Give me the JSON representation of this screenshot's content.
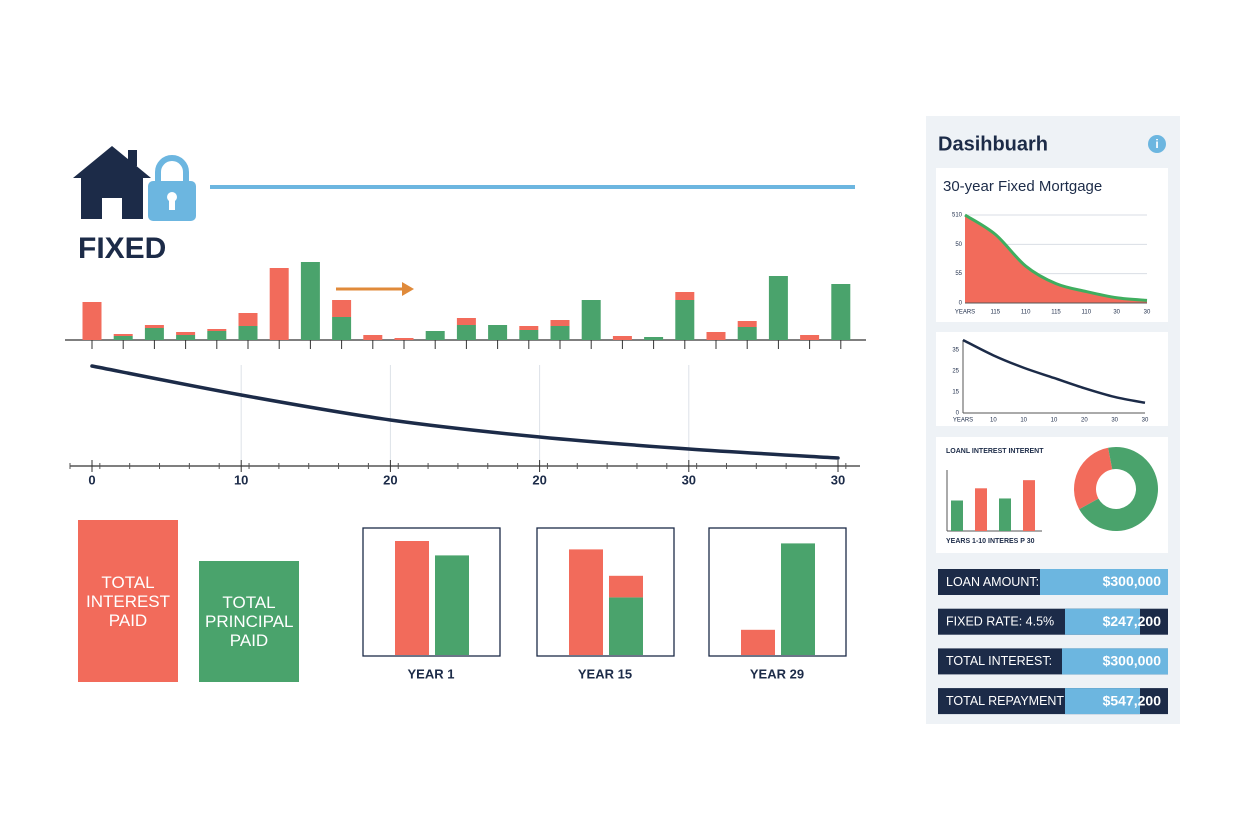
{
  "header": {
    "title": "FIXED"
  },
  "chart_data": [
    {
      "type": "stacked-bar",
      "categories": [
        null,
        null,
        null,
        null,
        null,
        null,
        null,
        null,
        null,
        null,
        null,
        null,
        null,
        null,
        null,
        null,
        null,
        null,
        null,
        null,
        null,
        null,
        null,
        null,
        null
      ],
      "ylim": [
        0,
        80
      ],
      "series": [
        {
          "color": "#4aa36c",
          "values": [
            0,
            4,
            12,
            5,
            9,
            14,
            0,
            78,
            23,
            0,
            0,
            9,
            15,
            15,
            10,
            14,
            40,
            0,
            3,
            40,
            0,
            13,
            64,
            0,
            56
          ]
        },
        {
          "color": "#f26b5b",
          "values": [
            38,
            2,
            3,
            3,
            2,
            13,
            72,
            0,
            17,
            5,
            2,
            0,
            7,
            0,
            4,
            6,
            0,
            4,
            0,
            8,
            8,
            6,
            0,
            5,
            0
          ]
        }
      ]
    },
    {
      "type": "line",
      "categories": [
        "0",
        "10",
        "20",
        "20",
        "30",
        "30"
      ],
      "values": [
        92,
        63,
        38,
        21,
        9,
        0
      ],
      "ylim": [
        0,
        100
      ],
      "color": "#1c2b48"
    },
    {
      "type": "bar",
      "categories": [
        "TOTAL INTEREST PAID",
        "TOTAL PRINCIPAL PAID"
      ],
      "values": [
        100,
        75
      ],
      "ylim": [
        0,
        100
      ],
      "colors": [
        "#f26b5b",
        "#4aa36c"
      ]
    },
    {
      "type": "panel-bar",
      "categories": [
        "YEAR 1",
        "YEAR 15",
        "YEAR 29"
      ],
      "ylim": [
        0,
        100
      ],
      "series": [
        {
          "color": "#f26b5b",
          "values": [
            95,
            88,
            21
          ]
        },
        {
          "color": "#4aa36c",
          "values": [
            83,
            48,
            93
          ]
        },
        {
          "color": "#f26b5b",
          "values": [
            0,
            18,
            0
          ]
        }
      ]
    },
    {
      "type": "area",
      "title": "30-year Fixed Mortgage",
      "x_labels": [
        "YEARS",
        "115",
        "110",
        "115",
        "110",
        "30",
        "30"
      ],
      "y_labels": [
        "510",
        "50",
        "55",
        "0"
      ],
      "values": [
        100,
        78,
        42,
        22,
        13,
        6,
        3
      ],
      "ylim": [
        0,
        100
      ],
      "color": "#f26b5b",
      "line_color": "#3fae5f"
    },
    {
      "type": "line",
      "x_labels": [
        "YEARS",
        "10",
        "10",
        "10",
        "20",
        "30",
        "30"
      ],
      "y_labels": [
        "35",
        "25",
        "15",
        "0"
      ],
      "values": [
        100,
        79,
        62,
        48,
        34,
        22,
        14
      ],
      "ylim": [
        0,
        100
      ],
      "color": "#1c2b48"
    },
    {
      "type": "bar",
      "title": "LOANL INTEREST INTERENT",
      "x_label": "YEARS 1-10 INTERES P 30",
      "values": [
        30,
        42,
        32,
        50
      ],
      "ylim": [
        0,
        60
      ],
      "colors": [
        "#4aa36c",
        "#f26b5b",
        "#4aa36c",
        "#f26b5b"
      ]
    },
    {
      "type": "pie",
      "values": [
        30,
        70
      ],
      "colors": [
        "#f26b5b",
        "#4aa36c"
      ]
    }
  ],
  "sidebar": {
    "title": "Dasihbuarh",
    "info": "i",
    "stats": [
      {
        "label": "LOAN AMOUNT:",
        "value": "$300,000"
      },
      {
        "label": "FIXED RATE: 4.5%",
        "value": "$247,200"
      },
      {
        "label": "TOTAL INTEREST:",
        "value": "$300,000"
      },
      {
        "label": "TOTAL REPAYMENT",
        "value": "$547,200"
      }
    ]
  }
}
